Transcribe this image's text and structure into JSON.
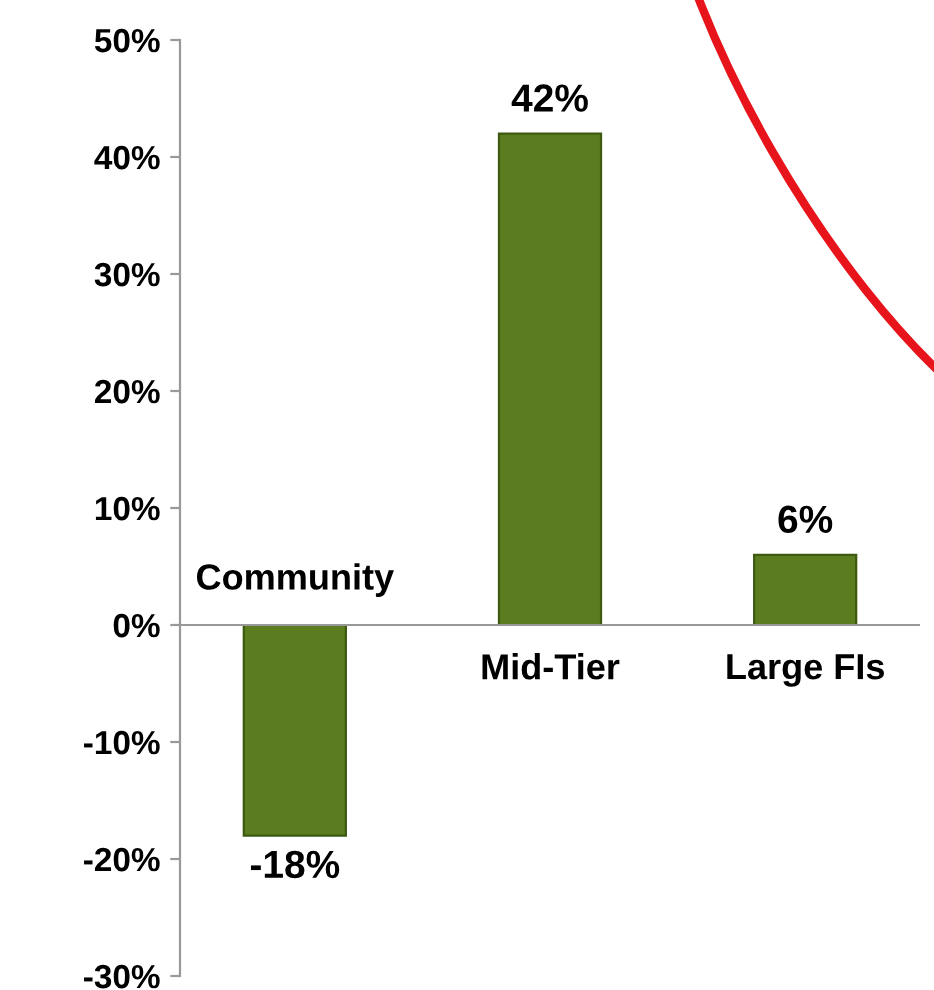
{
  "chart_data": {
    "type": "bar",
    "categories": [
      "Community",
      "Mid-Tier",
      "Large FIs"
    ],
    "values": [
      -18,
      42,
      6
    ],
    "value_labels": [
      "-18%",
      "42%",
      "6%"
    ],
    "color": "#5b7d1f",
    "ylim": [
      -30,
      50
    ],
    "yticks": [
      {
        "value": -30,
        "label": "-30%"
      },
      {
        "value": -20,
        "label": "-20%"
      },
      {
        "value": -10,
        "label": "-10%"
      },
      {
        "value": 0,
        "label": "0%"
      },
      {
        "value": 10,
        "label": "10%"
      },
      {
        "value": 20,
        "label": "20%"
      },
      {
        "value": 30,
        "label": "30%"
      },
      {
        "value": 40,
        "label": "40%"
      },
      {
        "value": 50,
        "label": "50%"
      }
    ],
    "grid": false,
    "legend": false
  }
}
